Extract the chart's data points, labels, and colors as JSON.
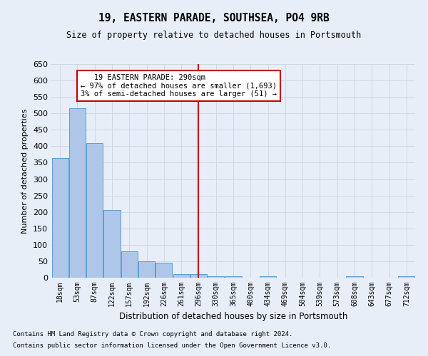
{
  "title": "19, EASTERN PARADE, SOUTHSEA, PO4 9RB",
  "subtitle": "Size of property relative to detached houses in Portsmouth",
  "xlabel": "Distribution of detached houses by size in Portsmouth",
  "ylabel": "Number of detached properties",
  "footnote1": "Contains HM Land Registry data © Crown copyright and database right 2024.",
  "footnote2": "Contains public sector information licensed under the Open Government Licence v3.0.",
  "bar_labels": [
    "18sqm",
    "53sqm",
    "87sqm",
    "122sqm",
    "157sqm",
    "192sqm",
    "226sqm",
    "261sqm",
    "296sqm",
    "330sqm",
    "365sqm",
    "400sqm",
    "434sqm",
    "469sqm",
    "504sqm",
    "539sqm",
    "573sqm",
    "608sqm",
    "643sqm",
    "677sqm",
    "712sqm"
  ],
  "bar_values": [
    365,
    515,
    410,
    205,
    80,
    50,
    45,
    10,
    10,
    5,
    5,
    0,
    5,
    0,
    0,
    0,
    0,
    5,
    0,
    0,
    5
  ],
  "bar_color": "#aec6e8",
  "bar_edge_color": "#5a9fd4",
  "grid_color": "#d0d8e8",
  "background_color": "#e8eef8",
  "vline_x_index": 8,
  "vline_color": "#cc0000",
  "annotation_text": "   19 EASTERN PARADE: 290sqm\n← 97% of detached houses are smaller (1,693)\n3% of semi-detached houses are larger (51) →",
  "annotation_box_color": "#cc0000",
  "ylim": [
    0,
    650
  ],
  "yticks": [
    0,
    50,
    100,
    150,
    200,
    250,
    300,
    350,
    400,
    450,
    500,
    550,
    600,
    650
  ]
}
